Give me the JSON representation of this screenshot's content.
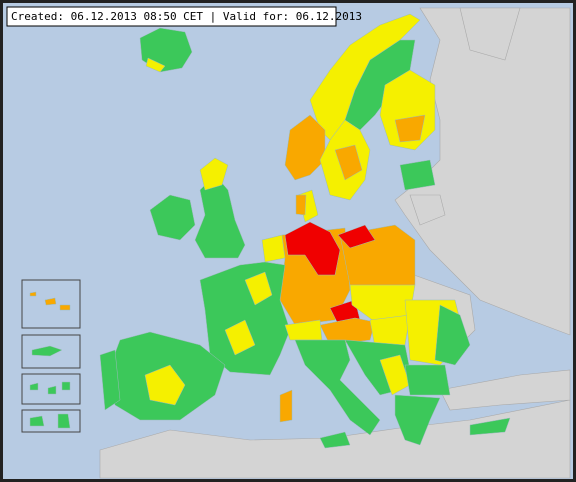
{
  "header": {
    "text": "Created: 06.12.2013 08:50 CET | Valid for: 06.12.2013"
  }
}
